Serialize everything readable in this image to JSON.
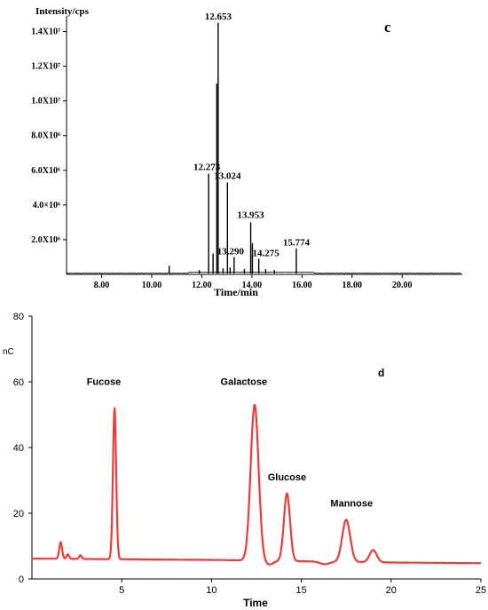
{
  "chart_data": [
    {
      "panel_label": "c",
      "type": "line",
      "ylabel": "Intensity/cps",
      "xlabel": "Time/min",
      "xlim": [
        6.6,
        22.4
      ],
      "ylim": [
        0,
        15000000
      ],
      "x_ticks": [
        {
          "value": 8,
          "label": "8.00"
        },
        {
          "value": 10,
          "label": "10.00"
        },
        {
          "value": 12,
          "label": "12.00"
        },
        {
          "value": 14,
          "label": "14.00"
        },
        {
          "value": 16,
          "label": "16.00"
        },
        {
          "value": 18,
          "label": "18.00"
        },
        {
          "value": 20,
          "label": "20.00"
        }
      ],
      "y_ticks": [
        {
          "value": 2000000,
          "label": "2.0X10⁶"
        },
        {
          "value": 4000000,
          "label": "4.0×10⁶"
        },
        {
          "value": 6000000,
          "label": "6.0X10⁶"
        },
        {
          "value": 8000000,
          "label": "8.0X10⁶"
        },
        {
          "value": 10000000,
          "label": "1.0X10⁷"
        },
        {
          "value": 12000000,
          "label": "1.2X10⁷"
        },
        {
          "value": 14000000,
          "label": "1.4X10⁷"
        }
      ],
      "peaks": [
        {
          "x": 10.7,
          "y": 500000
        },
        {
          "x": 11.9,
          "y": 250000
        },
        {
          "x": 12.273,
          "y": 5800000,
          "label": "12.273"
        },
        {
          "x": 12.45,
          "y": 1200000
        },
        {
          "x": 12.653,
          "y": 14500000,
          "label": "12.653"
        },
        {
          "x": 12.6,
          "y": 11000000
        },
        {
          "x": 12.85,
          "y": 350000
        },
        {
          "x": 13.024,
          "y": 5300000,
          "label": "13.024"
        },
        {
          "x": 13.13,
          "y": 400000
        },
        {
          "x": 13.29,
          "y": 1000000,
          "label": "13.290"
        },
        {
          "x": 13.7,
          "y": 300000
        },
        {
          "x": 13.953,
          "y": 3000000,
          "label": "13.953"
        },
        {
          "x": 14.02,
          "y": 1800000
        },
        {
          "x": 14.275,
          "y": 900000,
          "label": "14.275"
        },
        {
          "x": 14.55,
          "y": 300000
        },
        {
          "x": 14.9,
          "y": 250000
        },
        {
          "x": 15.774,
          "y": 1500000,
          "label": "15.774"
        }
      ]
    },
    {
      "panel_label": "d",
      "type": "line",
      "ylabel": "nC",
      "xlabel": "Time",
      "xlim": [
        0,
        25
      ],
      "ylim": [
        0,
        80
      ],
      "x_ticks": [
        5,
        10,
        15,
        20,
        25
      ],
      "y_ticks": [
        0,
        20,
        40,
        60,
        80
      ],
      "baseline": [
        [
          0,
          6.2
        ],
        [
          5,
          6.0
        ],
        [
          10,
          5.8
        ],
        [
          15,
          5.4
        ],
        [
          20,
          5.0
        ],
        [
          25,
          4.8
        ]
      ],
      "peaks": [
        {
          "x": 1.6,
          "y": 11.2
        },
        {
          "x": 2.0,
          "y": 7.5
        },
        {
          "x": 2.7,
          "y": 7.2
        },
        {
          "x": 4.6,
          "y": 52.0,
          "label": "Fucose"
        },
        {
          "x": 12.4,
          "y": 53.0,
          "label": "Galactose"
        },
        {
          "x": 14.2,
          "y": 26.0,
          "label": "Glucose"
        },
        {
          "x": 17.5,
          "y": 18.0,
          "label": "Mannose"
        },
        {
          "x": 19.0,
          "y": 8.8
        }
      ],
      "line_color": "#ef3b3b"
    }
  ]
}
